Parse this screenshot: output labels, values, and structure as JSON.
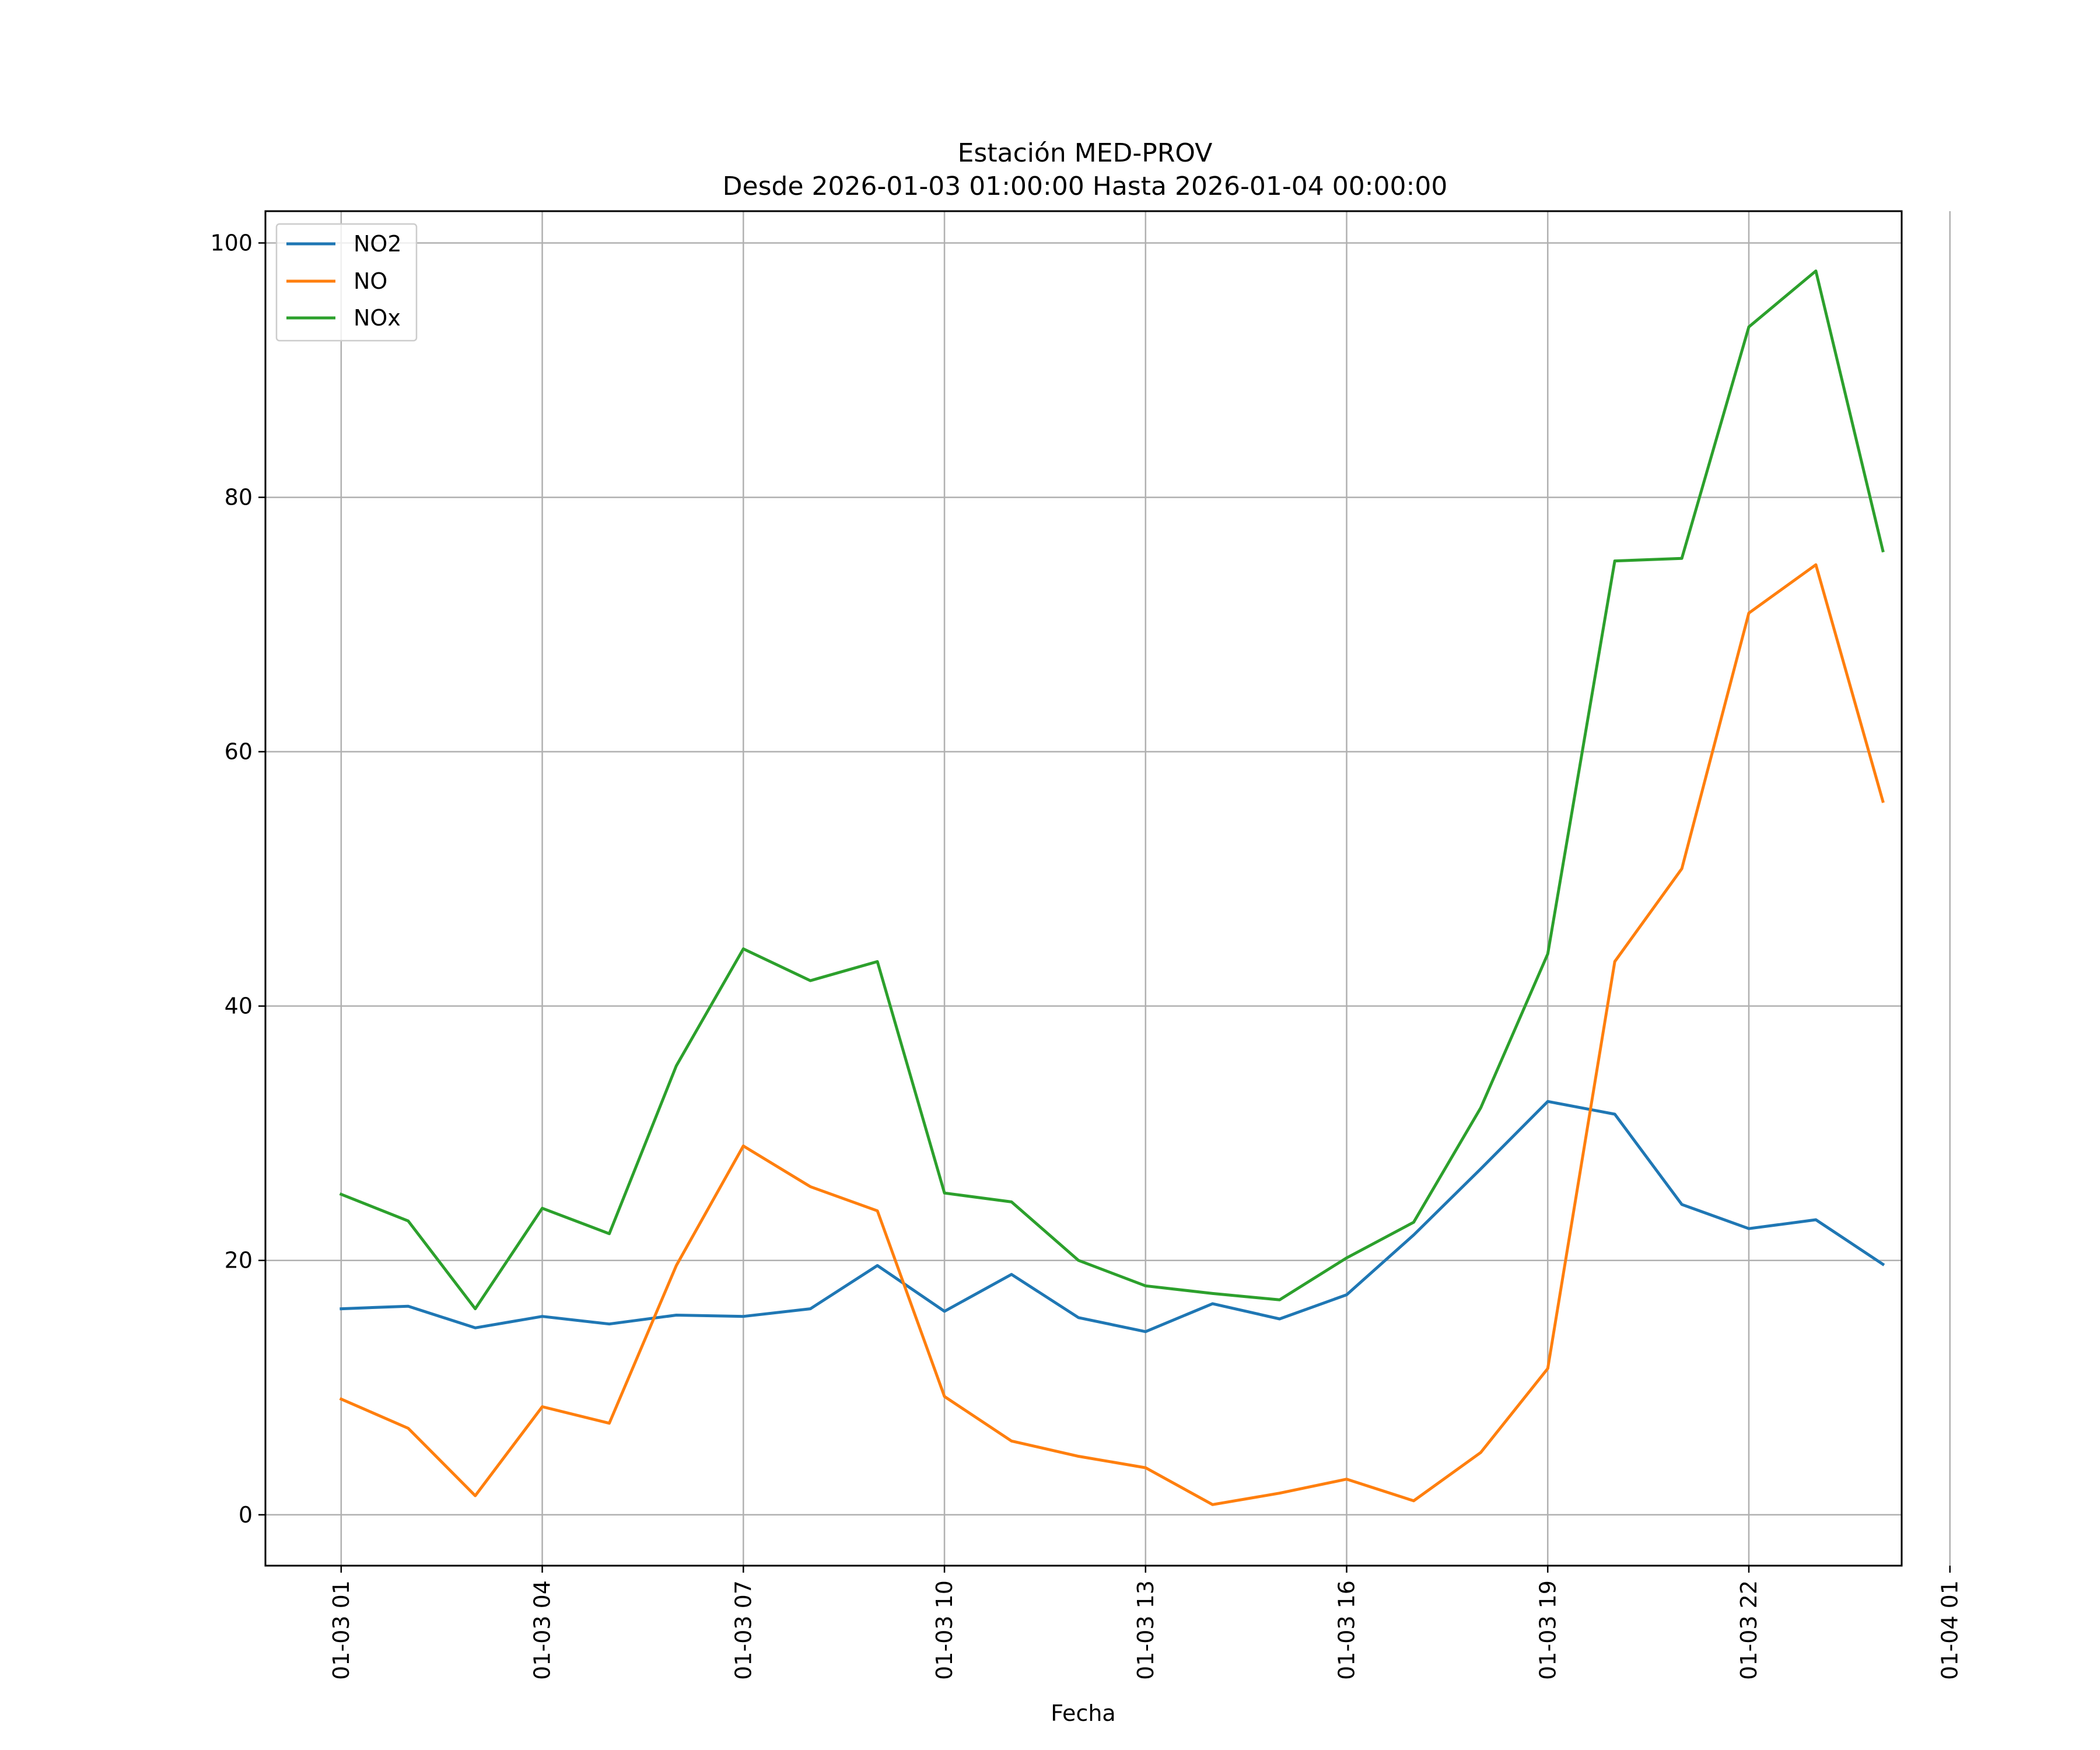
{
  "chart_data": {
    "type": "line",
    "title_line1": "Estación MED-PROV",
    "title_line2": "Desde 2026-01-03 01:00:00 Hasta 2026-01-04 00:00:00",
    "xlabel": "Fecha",
    "ylabel": "",
    "ylim": [
      -4,
      102.5
    ],
    "xlim": [
      -1.13,
      23.28
    ],
    "yticks": [
      0,
      20,
      40,
      60,
      80,
      100
    ],
    "xticks": [
      {
        "hour": 0,
        "label": "01-03 01"
      },
      {
        "hour": 3,
        "label": "01-03 04"
      },
      {
        "hour": 6,
        "label": "01-03 07"
      },
      {
        "hour": 9,
        "label": "01-03 10"
      },
      {
        "hour": 12,
        "label": "01-03 13"
      },
      {
        "hour": 15,
        "label": "01-03 16"
      },
      {
        "hour": 18,
        "label": "01-03 19"
      },
      {
        "hour": 21,
        "label": "01-03 22"
      },
      {
        "hour": 24,
        "label": "01-04 01"
      }
    ],
    "grid": true,
    "legend_position": "top-left",
    "x_hours": [
      0,
      1,
      2,
      3,
      4,
      5,
      6,
      7,
      8,
      9,
      10,
      11,
      12,
      13,
      14,
      15,
      16,
      17,
      18,
      19,
      20,
      21,
      22,
      23
    ],
    "series": [
      {
        "name": "NO2",
        "color": "#1f77b4",
        "values": [
          16.2,
          16.4,
          14.7,
          15.6,
          15.0,
          15.7,
          15.6,
          16.2,
          19.6,
          16.0,
          18.9,
          15.5,
          14.4,
          16.6,
          15.4,
          17.3,
          22.0,
          27.2,
          32.5,
          31.5,
          24.4,
          22.5,
          23.2,
          19.7
        ]
      },
      {
        "name": "NO",
        "color": "#ff7f0e",
        "values": [
          9.1,
          6.8,
          1.5,
          8.5,
          7.2,
          19.6,
          29.0,
          25.8,
          23.9,
          9.3,
          5.8,
          4.6,
          3.7,
          0.8,
          1.7,
          2.8,
          1.1,
          4.9,
          11.5,
          43.5,
          50.8,
          70.9,
          74.7,
          56.1
        ]
      },
      {
        "name": "NOx",
        "color": "#2ca02c",
        "values": [
          25.2,
          23.1,
          16.2,
          24.1,
          22.1,
          35.3,
          44.5,
          42.0,
          43.5,
          25.3,
          24.6,
          20.0,
          18.0,
          17.4,
          16.9,
          20.2,
          23.0,
          32.0,
          44.1,
          75.0,
          75.2,
          93.4,
          97.8,
          75.8
        ]
      }
    ]
  }
}
